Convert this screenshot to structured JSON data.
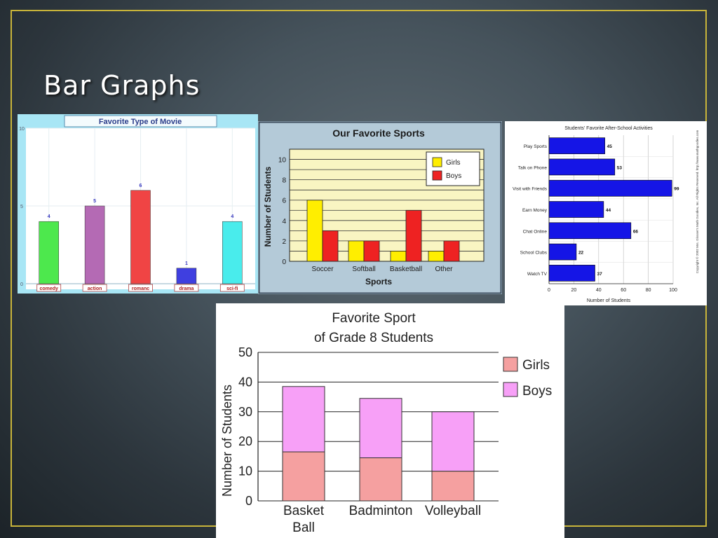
{
  "slide": {
    "title": "Bar Graphs"
  },
  "colors": {
    "frame": "#c8b43a"
  },
  "chart_data": [
    {
      "type": "bar",
      "title": "Favorite Type of Movie",
      "categories": [
        "comedy",
        "action",
        "romanc",
        "drama",
        "sci-fi"
      ],
      "values": [
        4,
        5,
        6,
        1,
        4
      ],
      "colors": [
        "#4de84d",
        "#b46ab4",
        "#f04444",
        "#3f3fe0",
        "#49ecec"
      ],
      "yticks": [
        "0",
        "5",
        "10"
      ],
      "ylim": [
        0,
        10
      ]
    },
    {
      "type": "bar",
      "title": "Our Favorite Sports",
      "xlabel": "Sports",
      "ylabel": "Number of Students",
      "categories": [
        "Soccer",
        "Softball",
        "Basketball",
        "Other"
      ],
      "series": [
        {
          "name": "Girls",
          "values": [
            6,
            2,
            1,
            1
          ],
          "color": "#ffee00"
        },
        {
          "name": "Boys",
          "values": [
            3,
            2,
            5,
            2
          ],
          "color": "#ee2222"
        }
      ],
      "yticks": [
        "0",
        "2",
        "4",
        "6",
        "8",
        "10"
      ],
      "ylim": [
        0,
        11
      ],
      "legend": "top-right"
    },
    {
      "type": "bar",
      "orientation": "horizontal",
      "title": "Students' Favorite After-School Activities",
      "xlabel": "Number of Students",
      "categories": [
        "Play Sports",
        "Talk on Phone",
        "Visit with Friends",
        "Earn Money",
        "Chat Online",
        "School Clubs",
        "Watch TV"
      ],
      "values": [
        45,
        53,
        99,
        44,
        66,
        22,
        37
      ],
      "xticks": [
        "0",
        "20",
        "40",
        "60",
        "80",
        "100"
      ],
      "xlim": [
        0,
        100
      ],
      "copyright": "Copyright © 2002 Mrs. Glosser's Math Goodies, Inc. All Rights Reserved. http://www.mathgoodies.com"
    },
    {
      "type": "bar",
      "stacked": true,
      "title_lines": [
        "Favorite Sport",
        "of Grade 8 Students"
      ],
      "ylabel": "Number of Students",
      "categories": [
        [
          "Basket",
          "Ball"
        ],
        [
          "Badminton"
        ],
        [
          "Volleyball"
        ]
      ],
      "series": [
        {
          "name": "Girls",
          "values": [
            16.5,
            14.5,
            10
          ],
          "color": "#f5a0a0"
        },
        {
          "name": "Boys",
          "values": [
            22,
            20,
            20
          ],
          "color": "#f7a0f7"
        }
      ],
      "yticks": [
        "0",
        "10",
        "20",
        "30",
        "40",
        "50"
      ],
      "ylim": [
        0,
        50
      ],
      "legend": "right"
    }
  ]
}
